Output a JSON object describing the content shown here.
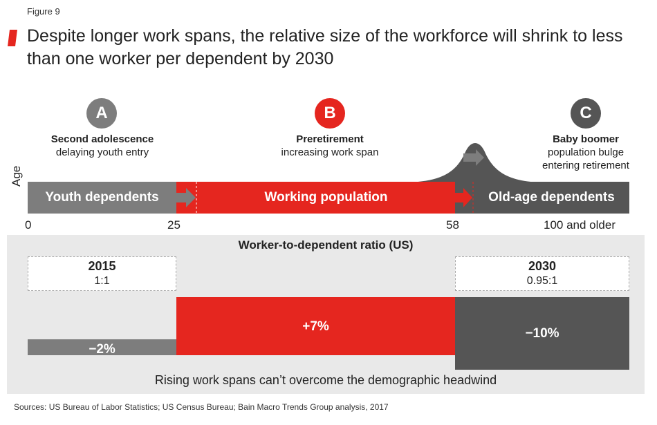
{
  "figure_label": "Figure 9",
  "title": "Despite longer work spans, the relative size of the workforce will shrink to less than one worker per dependent by 2030",
  "colors": {
    "red": "#e5261f",
    "grey": "#7d7d7d",
    "dark": "#555555",
    "panel": "#e9e9e9"
  },
  "callouts": [
    {
      "letter": "A",
      "title": "Second adolescence",
      "line1": "delaying youth entry",
      "line2": ""
    },
    {
      "letter": "B",
      "title": "Preretirement",
      "line1": "increasing work span",
      "line2": ""
    },
    {
      "letter": "C",
      "title": "Baby boomer",
      "line1": "population bulge",
      "line2": "entering retirement"
    }
  ],
  "age_axis_label": "Age",
  "segments": {
    "youth": "Youth dependents",
    "working": "Working population",
    "old": "Old-age dependents"
  },
  "ticks": [
    "0",
    "25",
    "58",
    "100 and older"
  ],
  "panel": {
    "title": "Worker-to-dependent ratio (US)",
    "year_2015": {
      "year": "2015",
      "ratio": "1:1"
    },
    "year_2030": {
      "year": "2030",
      "ratio": "0.95:1"
    },
    "changes": [
      {
        "label": "−2%",
        "value": -2
      },
      {
        "label": "+7%",
        "value": 7
      },
      {
        "label": "−10%",
        "value": -10
      }
    ],
    "caption": "Rising work spans can’t overcome the demographic headwind"
  },
  "sources": "Sources: US Bureau of Labor Statistics; US Census Bureau; Bain Macro Trends Group analysis, 2017"
}
